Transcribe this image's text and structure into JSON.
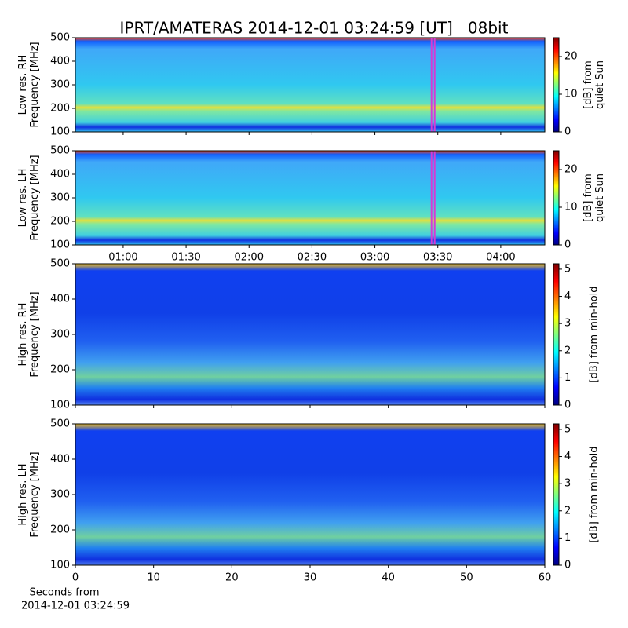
{
  "title": "IPRT/AMATERAS 2014-12-01 03:24:59 [UT]   08bit",
  "chart_data": [
    {
      "type": "heatmap",
      "ylabel": [
        "Low res. RH",
        "Frequency [MHz]"
      ],
      "xlim": [
        0.62,
        4.35
      ],
      "xticks": [
        1,
        1.5,
        2,
        2.5,
        3,
        3.5,
        4
      ],
      "ylim": [
        100,
        500
      ],
      "yticks": [
        100,
        200,
        300,
        400,
        500
      ],
      "vlines": [
        3.45,
        3.475
      ],
      "vline_color": "#d63ad6",
      "colorbar": {
        "label": [
          "[dB] from",
          "quiet Sun"
        ],
        "lim": [
          0,
          25
        ],
        "ticks": [
          0,
          10,
          20
        ],
        "colormap": [
          "#00007f",
          "#0000ff",
          "#007fff",
          "#00ffff",
          "#7fff7f",
          "#ffff00",
          "#ff7f00",
          "#ff0000",
          "#7f0000"
        ]
      }
    },
    {
      "type": "heatmap",
      "ylabel": [
        "Low res. LH",
        "Frequency [MHz]"
      ],
      "xlim": [
        0.62,
        4.35
      ],
      "xticks": [
        {
          "value": 1,
          "label": "01:00"
        },
        {
          "value": 1.5,
          "label": "01:30"
        },
        {
          "value": 2,
          "label": "02:00"
        },
        {
          "value": 2.5,
          "label": "02:30"
        },
        {
          "value": 3,
          "label": "03:00"
        },
        {
          "value": 3.5,
          "label": "03:30"
        },
        {
          "value": 4,
          "label": "04:00"
        }
      ],
      "ylim": [
        100,
        500
      ],
      "yticks": [
        100,
        200,
        300,
        400,
        500
      ],
      "vlines": [
        3.45,
        3.475
      ],
      "vline_color": "#d63ad6",
      "colorbar": {
        "label": [
          "[dB] from",
          "quiet Sun"
        ],
        "lim": [
          0,
          25
        ],
        "ticks": [
          0,
          10,
          20
        ],
        "colormap": [
          "#00007f",
          "#0000ff",
          "#007fff",
          "#00ffff",
          "#7fff7f",
          "#ffff00",
          "#ff7f00",
          "#ff0000",
          "#7f0000"
        ]
      }
    },
    {
      "type": "heatmap",
      "ylabel": [
        "High res. RH",
        "Frequency [MHz]"
      ],
      "xlim": [
        0,
        60
      ],
      "xticks": [
        0,
        10,
        20,
        30,
        40,
        50,
        60
      ],
      "ylim": [
        100,
        500
      ],
      "yticks": [
        100,
        200,
        300,
        400,
        500
      ],
      "colorbar": {
        "label": [
          "[dB] from min-hold"
        ],
        "lim": [
          0,
          5.2
        ],
        "ticks": [
          0,
          1,
          2,
          3,
          4,
          5
        ],
        "colormap": [
          "#00007f",
          "#0000ff",
          "#007fff",
          "#00ffff",
          "#7fff7f",
          "#ffff00",
          "#ff7f00",
          "#ff0000",
          "#7f0000"
        ]
      }
    },
    {
      "type": "heatmap",
      "ylabel": [
        "High res. LH",
        "Frequency [MHz]"
      ],
      "xlabel": [
        "Seconds from",
        "2014-12-01 03:24:59"
      ],
      "xlim": [
        0,
        60
      ],
      "xticks": [
        0,
        10,
        20,
        30,
        40,
        50,
        60
      ],
      "ylim": [
        100,
        500
      ],
      "yticks": [
        100,
        200,
        300,
        400,
        500
      ],
      "colorbar": {
        "label": [
          "[dB] from min-hold"
        ],
        "lim": [
          0,
          5.2
        ],
        "ticks": [
          0,
          1,
          2,
          3,
          4,
          5
        ],
        "colormap": [
          "#00007f",
          "#0000ff",
          "#007fff",
          "#00ffff",
          "#7fff7f",
          "#ffff00",
          "#ff7f00",
          "#ff0000",
          "#7f0000"
        ]
      }
    }
  ]
}
